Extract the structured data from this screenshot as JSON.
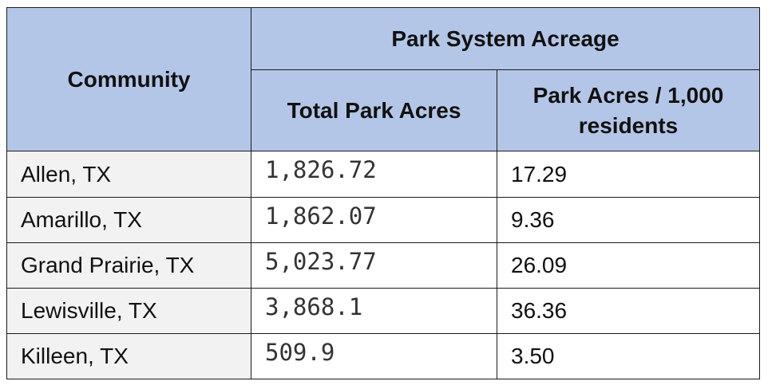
{
  "table": {
    "header": {
      "community": "Community",
      "group": "Park System Acreage",
      "total_acres": "Total Park Acres",
      "per_1000_line1": "Park Acres / 1,000",
      "per_1000_line2": "residents"
    },
    "rows": [
      {
        "community": "Allen, TX",
        "total_acres": "1,826.72",
        "per_1000": "17.29"
      },
      {
        "community": "Amarillo, TX",
        "total_acres": "1,862.07",
        "per_1000": "9.36"
      },
      {
        "community": "Grand Prairie, TX",
        "total_acres": "5,023.77",
        "per_1000": "26.09"
      },
      {
        "community": "Lewisville, TX",
        "total_acres": "3,868.1",
        "per_1000": "36.36"
      },
      {
        "community": "Killeen, TX",
        "total_acres": "509.9",
        "per_1000": "3.50"
      }
    ],
    "colors": {
      "header_bg": "#b4c6e7",
      "community_bg": "#f2f2f2",
      "border": "#1a1a1a"
    }
  }
}
